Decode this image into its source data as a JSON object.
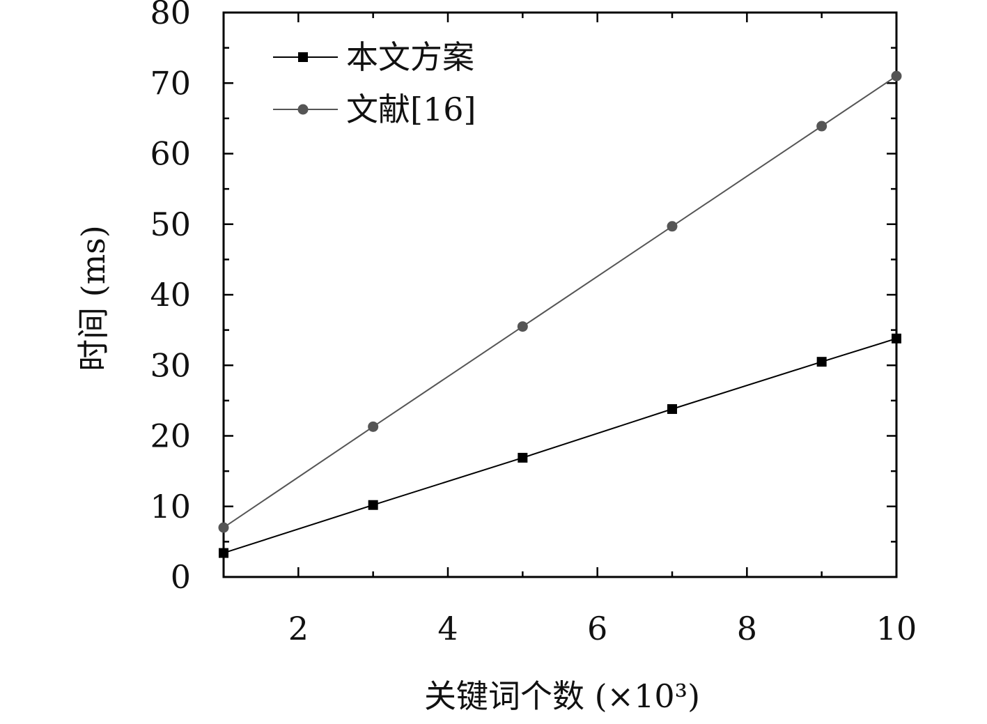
{
  "chart_data": {
    "type": "line",
    "xlabel": "关键词个数 (×10³)",
    "ylabel": "时间 (ms)",
    "xlim": [
      1,
      10
    ],
    "ylim": [
      0,
      80
    ],
    "x_ticks": [
      2,
      4,
      6,
      8,
      10
    ],
    "y_ticks": [
      0,
      10,
      20,
      30,
      40,
      50,
      60,
      70,
      80
    ],
    "grid": false,
    "legend_position": "top-left",
    "x": [
      1,
      3,
      5,
      7,
      9,
      10
    ],
    "series": [
      {
        "name": "本文方案",
        "marker": "square",
        "color": "#000000",
        "values": [
          3.4,
          10.2,
          16.9,
          23.8,
          30.5,
          33.8
        ]
      },
      {
        "name": "文献[16]",
        "marker": "circle",
        "color": "#555555",
        "values": [
          7.0,
          21.3,
          35.5,
          49.7,
          63.9,
          71.0
        ]
      }
    ]
  }
}
